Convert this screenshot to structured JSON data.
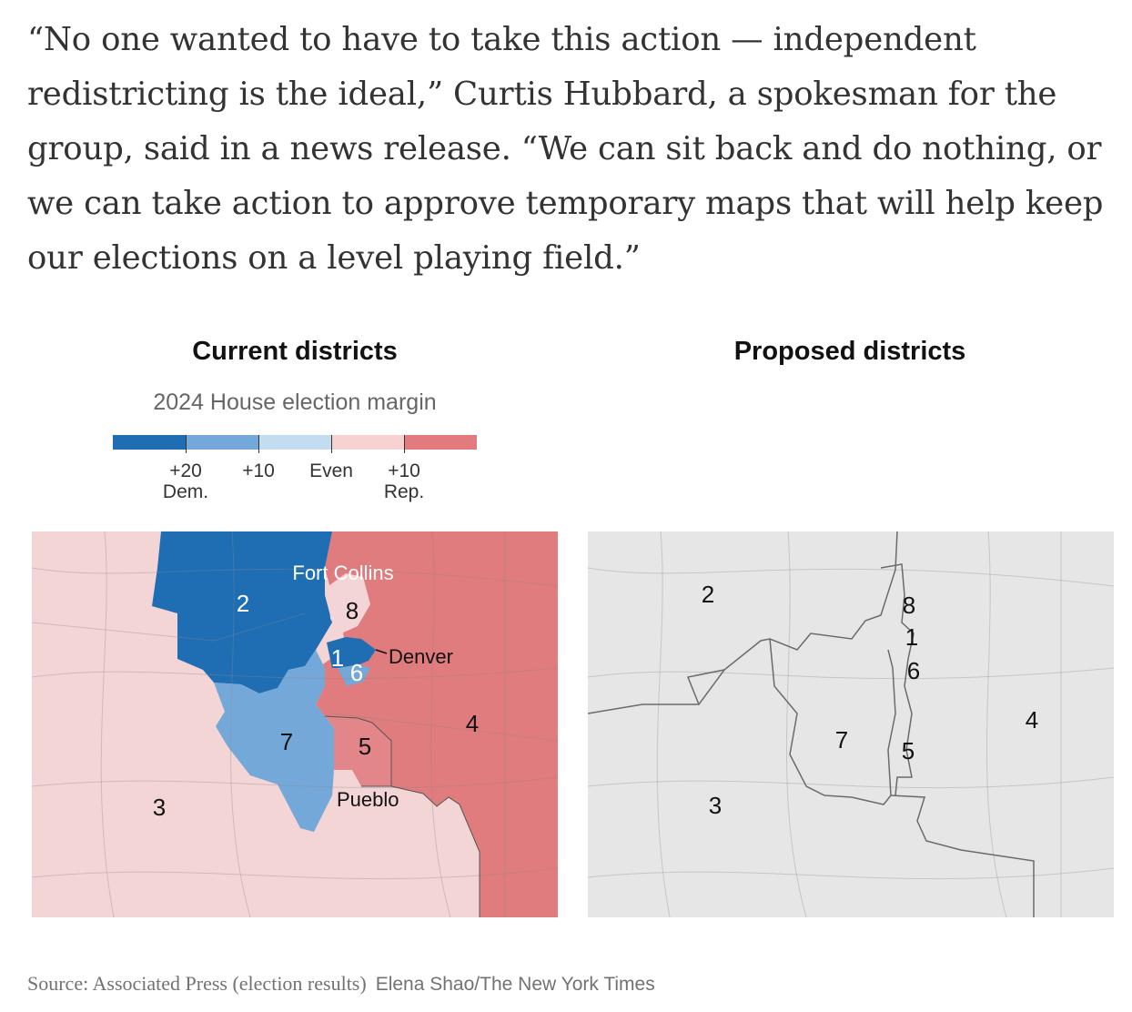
{
  "article": {
    "quote_lines": [
      "“No one wanted to have to take this action — independent",
      "redistricting is the ideal,” Curtis Hubbard, a spokesman for the",
      "group, said in a news release. “We can sit back and do nothing, or",
      "we can take action to approve temporary maps that will help keep",
      "our elections on a level playing field.”"
    ]
  },
  "left_map": {
    "title": "Current districts",
    "legend": {
      "title": "2024 House election margin",
      "colors": [
        "#1f6eb4",
        "#74a8d8",
        "#c4dcef",
        "#f6d2d3",
        "#f3d8d9",
        "#e37a7d"
      ],
      "labels": [
        {
          "text": "+20",
          "sub": "Dem."
        },
        {
          "text": "+10",
          "sub": ""
        },
        {
          "text": "Even",
          "sub": ""
        },
        {
          "text": "+10",
          "sub": "Rep."
        }
      ]
    },
    "district_labels": [
      "2",
      "8",
      "1",
      "6",
      "7",
      "5",
      "4",
      "3"
    ],
    "cities": [
      "Fort Collins",
      "Denver",
      "Pueblo"
    ],
    "colors": {
      "d2": "#1f6eb4",
      "d7": "#74a8d8",
      "d3": "#f3d5d6",
      "d4": "#e07b7e",
      "d5": "#e28689",
      "d8": "#f4d5d7",
      "d1": "#1f6eb4",
      "d6": "#74a8d8"
    }
  },
  "right_map": {
    "title": "Proposed districts",
    "district_labels": [
      "2",
      "8",
      "1",
      "6",
      "4",
      "7",
      "5",
      "3"
    ],
    "background": "#e6e6e6"
  },
  "footer": {
    "source": "Source: Associated Press (election results)",
    "credit": "Elena Shao/The New York Times"
  }
}
